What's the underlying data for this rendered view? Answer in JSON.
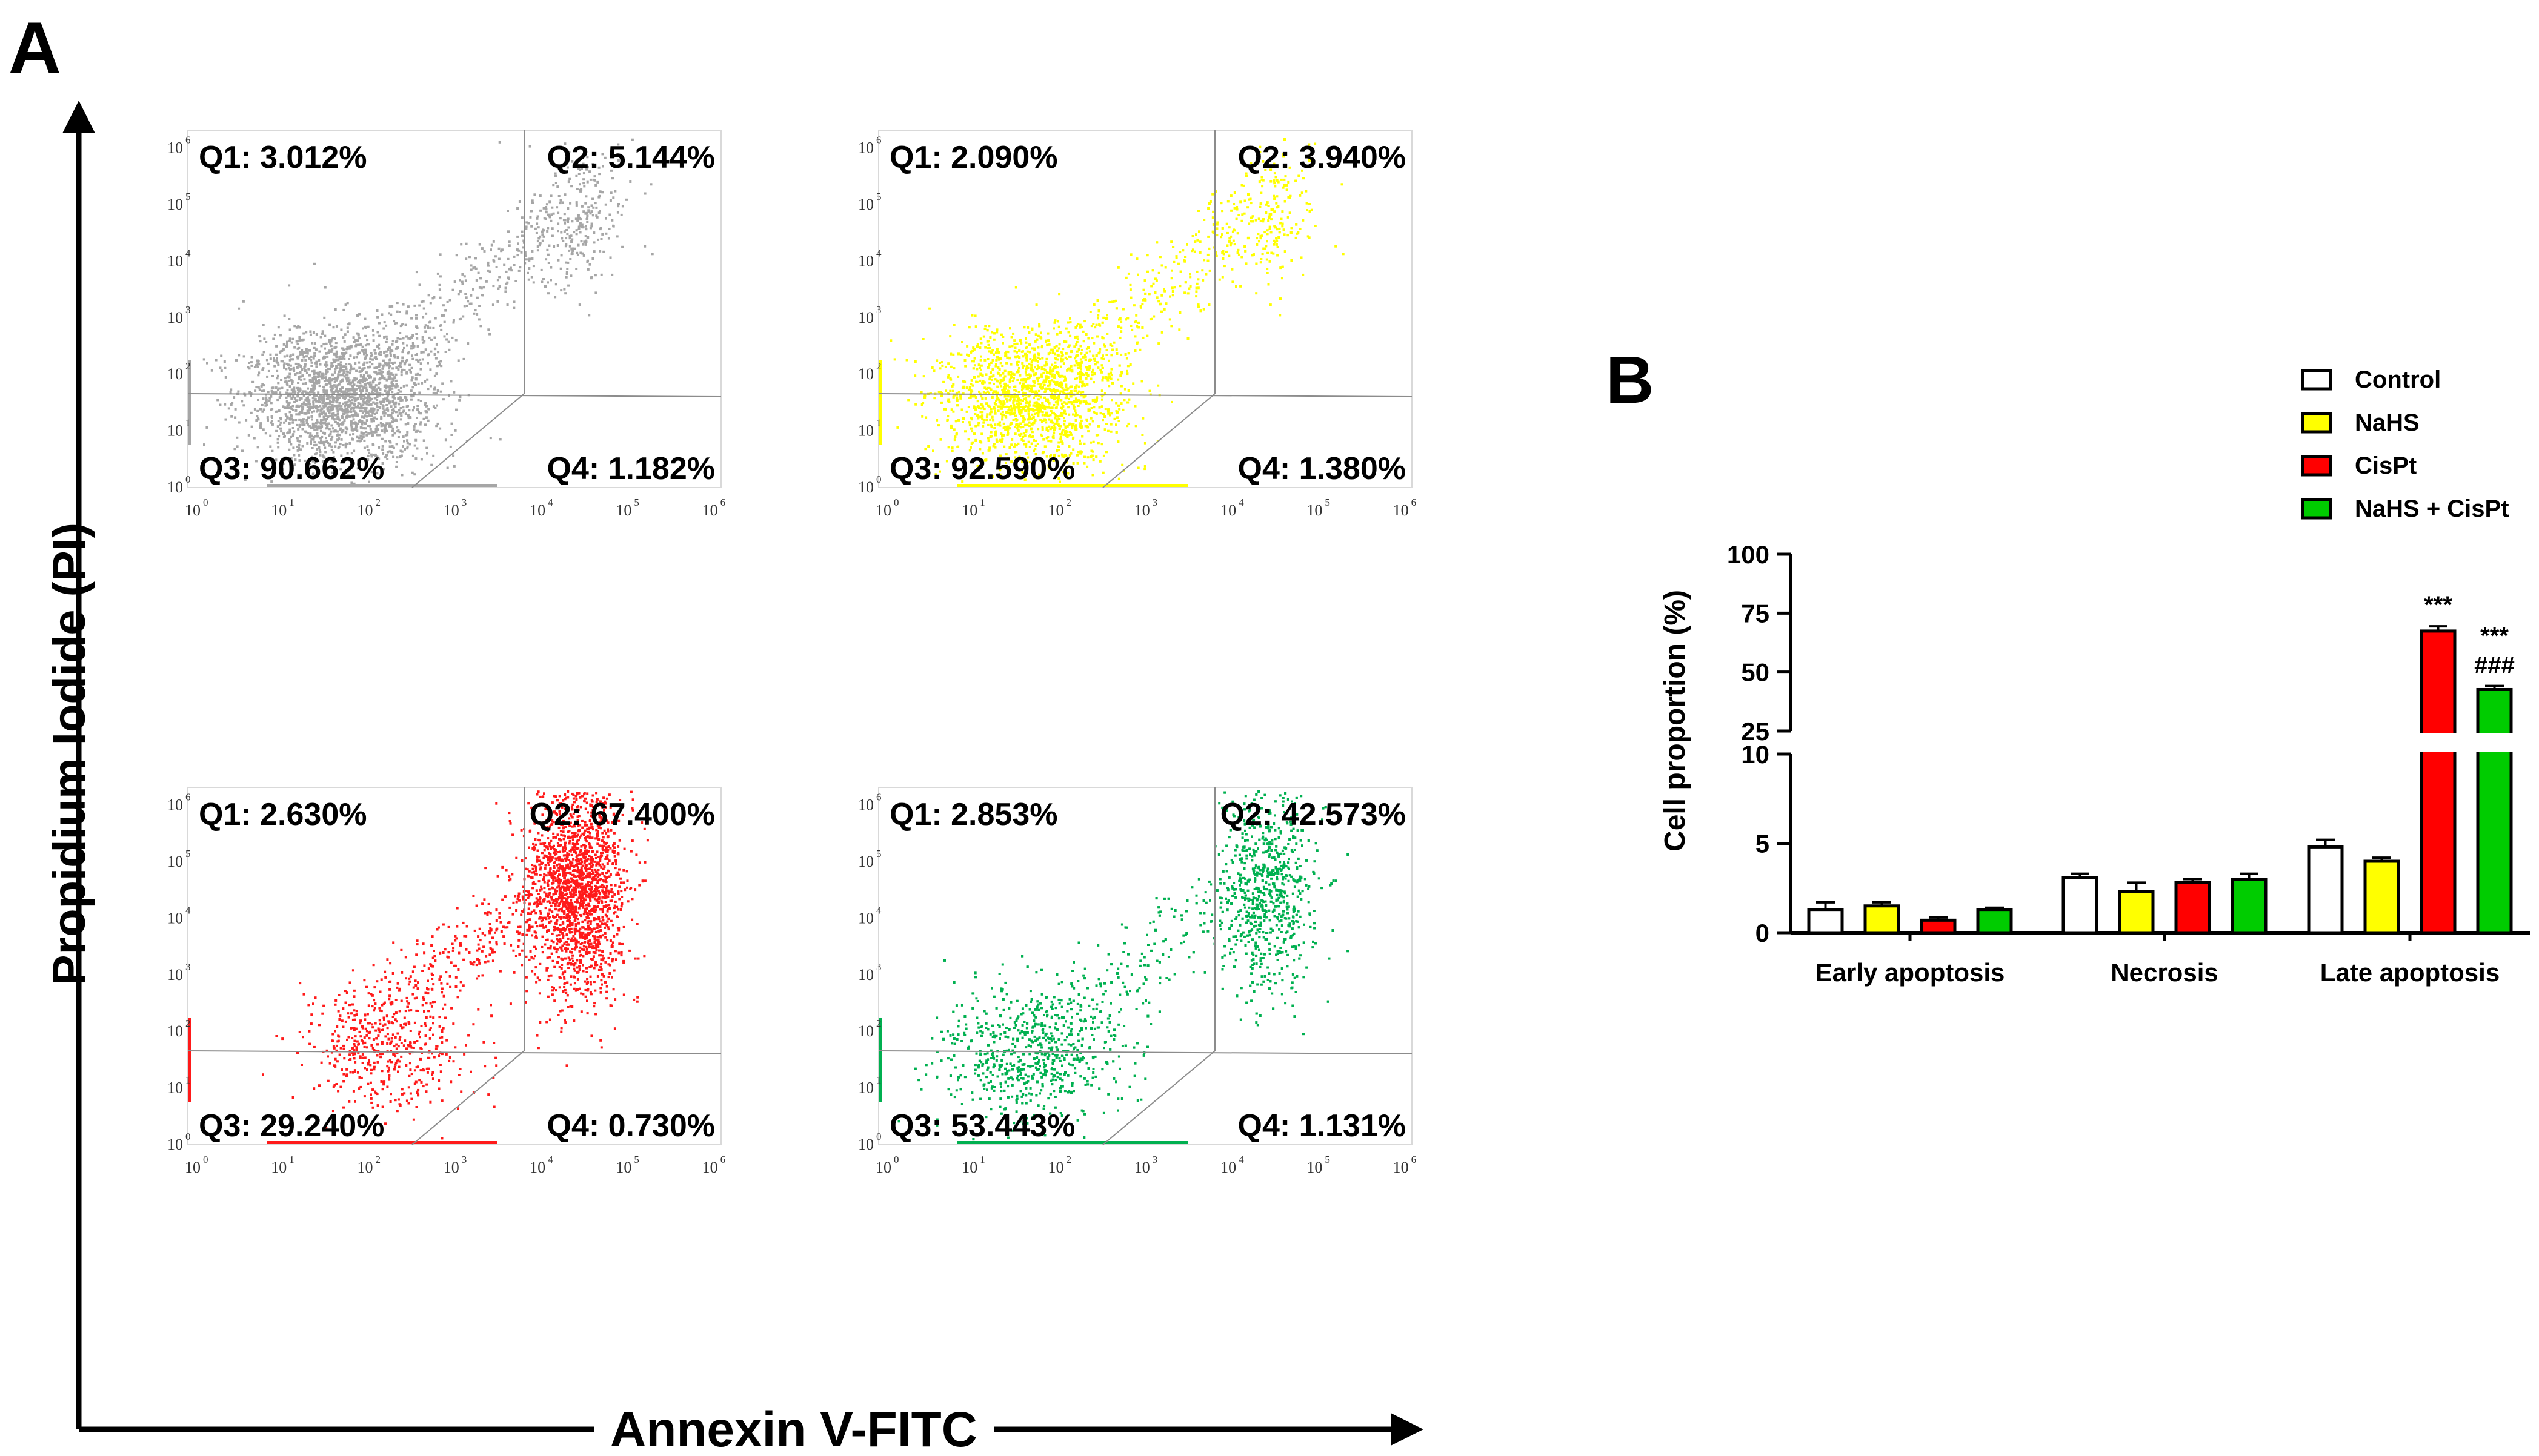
{
  "panel_labels": {
    "a": "A",
    "b": "B"
  },
  "flow": {
    "ylabel": "Propidium Iodide (PI)",
    "xlabel": "Annexin V-FITC",
    "tick_labels": [
      "10",
      "10",
      "10",
      "10",
      "10",
      "10",
      "10"
    ],
    "tick_exponents": [
      "0",
      "1",
      "2",
      "3",
      "4",
      "5",
      "6"
    ],
    "plots": [
      {
        "name": "Control",
        "color": "#a6a6a6",
        "q1": "Q1: 3.012%",
        "q2": "Q2: 5.144%",
        "q3": "Q3: 90.662%",
        "q4": "Q4: 1.182%"
      },
      {
        "name": "NaHS",
        "color": "#ffff00",
        "q1": "Q1: 2.090%",
        "q2": "Q2: 3.940%",
        "q3": "Q3: 92.590%",
        "q4": "Q4: 1.380%"
      },
      {
        "name": "CisPt",
        "color": "#ff1a1a",
        "q1": "Q1: 2.630%",
        "q2": "Q2: 67.400%",
        "q3": "Q3: 29.240%",
        "q4": "Q4: 0.730%"
      },
      {
        "name": "NaHS + CisPt",
        "color": "#00b050",
        "q1": "Q1: 2.853%",
        "q2": "Q2: 42.573%",
        "q3": "Q3: 53.443%",
        "q4": "Q4: 1.131%"
      }
    ]
  },
  "chart_data": {
    "type": "bar",
    "title": "",
    "xlabel": "",
    "ylabel": "Cell proportion (%)",
    "categories": [
      "Early apoptosis",
      "Necrosis",
      "Late apoptosis"
    ],
    "series": [
      {
        "name": "Control",
        "color": "#ffffff",
        "values": [
          1.3,
          3.1,
          4.8
        ],
        "errors": [
          0.4,
          0.2,
          0.4
        ]
      },
      {
        "name": "NaHS",
        "color": "#ffff00",
        "values": [
          1.5,
          2.3,
          4.0
        ],
        "errors": [
          0.2,
          0.5,
          0.2
        ]
      },
      {
        "name": "CisPt",
        "color": "#ff0000",
        "values": [
          0.7,
          2.8,
          67.4
        ],
        "errors": [
          0.15,
          0.2,
          2.0
        ]
      },
      {
        "name": "NaHS + CisPt",
        "color": "#00cc00",
        "values": [
          1.3,
          3.0,
          42.6
        ],
        "errors": [
          0.1,
          0.3,
          1.5
        ]
      }
    ],
    "y_axis_break": {
      "lower_range": [
        0,
        10
      ],
      "upper_range": [
        25,
        100
      ]
    },
    "lower_ticks": [
      "0",
      "5",
      "10"
    ],
    "upper_ticks": [
      "25",
      "50",
      "75",
      "100"
    ],
    "annotations": [
      "***",
      "***",
      "###"
    ],
    "legend_position": "top-right"
  }
}
